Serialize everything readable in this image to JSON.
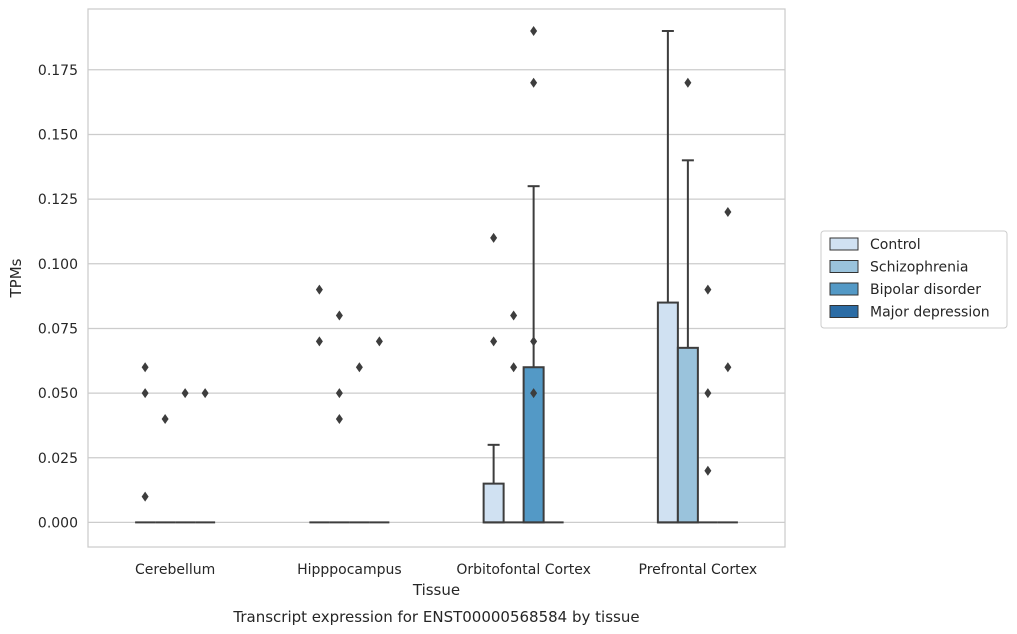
{
  "chart_data": {
    "type": "box",
    "xlabel": "Tissue",
    "ylabel": "TPMs",
    "caption": "Transcript expression for ENST00000568584 by tissue",
    "ylim": [
      -0.0095,
      0.1985
    ],
    "yticks": [
      0.0,
      0.025,
      0.05,
      0.075,
      0.1,
      0.125,
      0.15,
      0.175
    ],
    "ytick_labels": [
      "0.000",
      "0.025",
      "0.050",
      "0.075",
      "0.100",
      "0.125",
      "0.150",
      "0.175"
    ],
    "grid": "horizontal",
    "legend_placement": "right",
    "categories": [
      "Cerebellum",
      "Hipppocampus",
      "Orbitofontal Cortex",
      "Prefrontal Cortex"
    ],
    "series": [
      {
        "name": "Control",
        "color": "#d0e1f2",
        "boxes": [
          {
            "q1": 0,
            "median": 0,
            "q3": 0,
            "whisker_low": 0,
            "whisker_high": 0,
            "outliers": [
              0.06,
              0.05,
              0.01
            ]
          },
          {
            "q1": 0,
            "median": 0,
            "q3": 0,
            "whisker_low": 0,
            "whisker_high": 0,
            "outliers": [
              0.09,
              0.07
            ]
          },
          {
            "q1": 0,
            "median": 0,
            "q3": 0.015,
            "whisker_low": 0,
            "whisker_high": 0.03,
            "outliers": [
              0.11,
              0.07
            ]
          },
          {
            "q1": 0,
            "median": 0,
            "q3": 0.085,
            "whisker_low": 0,
            "whisker_high": 0.19,
            "outliers": []
          }
        ]
      },
      {
        "name": "Schizophrenia",
        "color": "#9ac3dc",
        "boxes": [
          {
            "q1": 0,
            "median": 0,
            "q3": 0,
            "whisker_low": 0,
            "whisker_high": 0,
            "outliers": [
              0.04
            ]
          },
          {
            "q1": 0,
            "median": 0,
            "q3": 0,
            "whisker_low": 0,
            "whisker_high": 0,
            "outliers": [
              0.08,
              0.05,
              0.04
            ]
          },
          {
            "q1": 0,
            "median": 0,
            "q3": 0,
            "whisker_low": 0,
            "whisker_high": 0,
            "outliers": [
              0.08,
              0.06
            ]
          },
          {
            "q1": 0,
            "median": 0,
            "q3": 0.0675,
            "whisker_low": 0,
            "whisker_high": 0.14,
            "outliers": [
              0.17
            ]
          }
        ]
      },
      {
        "name": "Bipolar disorder",
        "color": "#5399c6",
        "boxes": [
          {
            "q1": 0,
            "median": 0,
            "q3": 0,
            "whisker_low": 0,
            "whisker_high": 0,
            "outliers": [
              0.05
            ]
          },
          {
            "q1": 0,
            "median": 0,
            "q3": 0,
            "whisker_low": 0,
            "whisker_high": 0,
            "outliers": [
              0.06
            ]
          },
          {
            "q1": 0,
            "median": 0,
            "q3": 0.06,
            "whisker_low": 0,
            "whisker_high": 0.13,
            "outliers": [
              0.19,
              0.17,
              0.07,
              0.05
            ]
          },
          {
            "q1": 0,
            "median": 0,
            "q3": 0,
            "whisker_low": 0,
            "whisker_high": 0,
            "outliers": [
              0.09,
              0.05,
              0.02
            ]
          }
        ]
      },
      {
        "name": "Major depression",
        "color": "#2b6ca5",
        "boxes": [
          {
            "q1": 0,
            "median": 0,
            "q3": 0,
            "whisker_low": 0,
            "whisker_high": 0,
            "outliers": [
              0.05
            ]
          },
          {
            "q1": 0,
            "median": 0,
            "q3": 0,
            "whisker_low": 0,
            "whisker_high": 0,
            "outliers": [
              0.07
            ]
          },
          {
            "q1": 0,
            "median": 0,
            "q3": 0,
            "whisker_low": 0,
            "whisker_high": 0,
            "outliers": []
          },
          {
            "q1": 0,
            "median": 0,
            "q3": 0,
            "whisker_low": 0,
            "whisker_high": 0,
            "outliers": [
              0.12,
              0.06
            ]
          }
        ]
      }
    ]
  }
}
